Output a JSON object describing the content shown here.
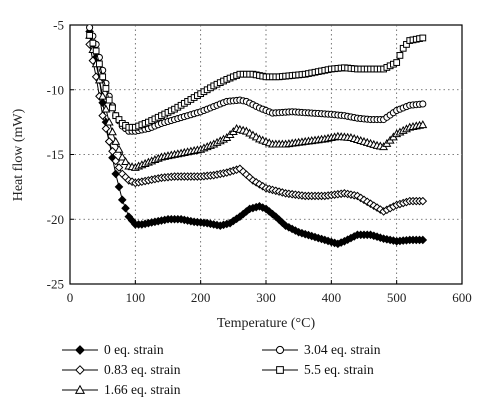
{
  "chart_data": {
    "type": "line",
    "xlabel": "Temperature (°C)",
    "ylabel": "Heat flow (mW)",
    "xlim": [
      0,
      600
    ],
    "ylim": [
      -25,
      -5
    ],
    "xticks": [
      0,
      100,
      200,
      300,
      400,
      500,
      600
    ],
    "yticks": [
      -5,
      -10,
      -15,
      -20,
      -25
    ],
    "grid": "dotted",
    "legend_position": "bottom",
    "series": [
      {
        "name": "0 eq. strain",
        "marker": "filled-diamond",
        "x": [
          30,
          40,
          50,
          60,
          70,
          80,
          90,
          100,
          110,
          130,
          150,
          170,
          190,
          210,
          230,
          245,
          260,
          275,
          290,
          300,
          315,
          330,
          350,
          370,
          390,
          410,
          420,
          440,
          460,
          480,
          500,
          520,
          540
        ],
        "y": [
          -5.5,
          -7.5,
          -11,
          -14,
          -16.5,
          -18.5,
          -19.8,
          -20.4,
          -20.4,
          -20.2,
          -20.0,
          -20.0,
          -20.2,
          -20.3,
          -20.5,
          -20.3,
          -19.8,
          -19.2,
          -19.0,
          -19.2,
          -19.8,
          -20.5,
          -21.0,
          -21.3,
          -21.6,
          -21.9,
          -21.7,
          -21.2,
          -21.2,
          -21.5,
          -21.7,
          -21.6,
          -21.6
        ]
      },
      {
        "name": "0.83 eq. strain",
        "marker": "open-diamond",
        "x": [
          30,
          40,
          50,
          60,
          70,
          80,
          90,
          100,
          120,
          140,
          160,
          180,
          200,
          220,
          240,
          260,
          280,
          300,
          330,
          360,
          390,
          420,
          440,
          460,
          480,
          500,
          520,
          540
        ],
        "y": [
          -6.5,
          -9,
          -12,
          -14,
          -15.5,
          -16.5,
          -17.0,
          -17.2,
          -17.0,
          -16.8,
          -16.7,
          -16.7,
          -16.7,
          -16.6,
          -16.4,
          -16.1,
          -17.0,
          -17.6,
          -18.0,
          -18.2,
          -18.2,
          -18.0,
          -18.2,
          -18.8,
          -19.4,
          -18.9,
          -18.6,
          -18.6
        ]
      },
      {
        "name": "1.66 eq. strain",
        "marker": "open-triangle",
        "x": [
          30,
          40,
          50,
          60,
          70,
          80,
          90,
          100,
          120,
          140,
          160,
          180,
          200,
          220,
          240,
          255,
          270,
          290,
          310,
          330,
          360,
          390,
          410,
          430,
          450,
          470,
          480,
          500,
          520,
          540
        ],
        "y": [
          -5.8,
          -8,
          -10.5,
          -12.5,
          -14,
          -15.2,
          -15.9,
          -16.0,
          -15.6,
          -15.2,
          -15.0,
          -14.8,
          -14.6,
          -14.2,
          -13.7,
          -13.0,
          -13.2,
          -13.8,
          -14.2,
          -14.2,
          -14.0,
          -13.8,
          -13.6,
          -13.7,
          -14.0,
          -14.3,
          -14.4,
          -13.4,
          -12.9,
          -12.7
        ]
      },
      {
        "name": "3.04 eq. strain",
        "marker": "open-circle",
        "x": [
          30,
          40,
          50,
          60,
          70,
          80,
          90,
          100,
          120,
          140,
          160,
          180,
          200,
          220,
          240,
          260,
          270,
          290,
          310,
          340,
          370,
          400,
          420,
          440,
          460,
          480,
          500,
          520,
          540
        ],
        "y": [
          -5.2,
          -6.5,
          -8.5,
          -10.5,
          -12,
          -12.8,
          -13.2,
          -13.2,
          -13.0,
          -12.6,
          -12.3,
          -12.0,
          -11.7,
          -11.3,
          -10.9,
          -10.8,
          -10.9,
          -11.4,
          -11.8,
          -11.7,
          -11.8,
          -11.9,
          -12.0,
          -12.2,
          -12.3,
          -12.3,
          -11.6,
          -11.2,
          -11.1
        ]
      },
      {
        "name": "5.5 eq. strain",
        "marker": "open-square",
        "x": [
          30,
          40,
          50,
          60,
          70,
          80,
          90,
          100,
          120,
          140,
          160,
          180,
          200,
          220,
          240,
          260,
          280,
          300,
          320,
          340,
          360,
          380,
          400,
          420,
          440,
          460,
          480,
          500,
          510,
          520,
          540
        ],
        "y": [
          -5.8,
          -7,
          -9,
          -10.8,
          -12,
          -12.6,
          -12.9,
          -12.9,
          -12.5,
          -12.0,
          -11.5,
          -10.9,
          -10.3,
          -9.7,
          -9.2,
          -8.8,
          -8.8,
          -9.0,
          -9.0,
          -8.9,
          -8.8,
          -8.6,
          -8.4,
          -8.3,
          -8.4,
          -8.4,
          -8.4,
          -7.9,
          -6.8,
          -6.2,
          -6.0
        ]
      }
    ]
  }
}
